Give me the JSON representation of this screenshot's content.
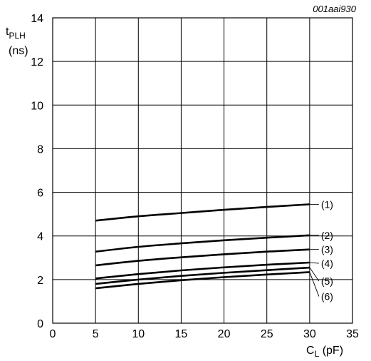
{
  "chart_data": {
    "type": "line",
    "code": "001aai930",
    "ylabel_main": "t",
    "ylabel_sub": "PLH",
    "yunit": "(ns)",
    "xlabel_main": "C",
    "xlabel_sub": "L",
    "xunit": " (pF)",
    "xlim": [
      0,
      35
    ],
    "ylim": [
      0,
      14
    ],
    "xticks": [
      0,
      5,
      10,
      15,
      20,
      25,
      30,
      35
    ],
    "yticks": [
      0,
      2,
      4,
      6,
      8,
      10,
      12,
      14
    ],
    "grid": true,
    "x": [
      5,
      10,
      15,
      20,
      25,
      30
    ],
    "series": [
      {
        "name": "(1)",
        "values": [
          4.7,
          4.9,
          5.05,
          5.2,
          5.33,
          5.45
        ]
      },
      {
        "name": "(2)",
        "values": [
          3.28,
          3.5,
          3.66,
          3.8,
          3.92,
          4.03
        ]
      },
      {
        "name": "(3)",
        "values": [
          2.65,
          2.86,
          3.02,
          3.16,
          3.28,
          3.38
        ]
      },
      {
        "name": "(4)",
        "values": [
          2.05,
          2.25,
          2.42,
          2.56,
          2.68,
          2.78
        ]
      },
      {
        "name": "(5)",
        "values": [
          1.8,
          2.0,
          2.17,
          2.31,
          2.43,
          2.55
        ]
      },
      {
        "name": "(6)",
        "values": [
          1.6,
          1.8,
          1.97,
          2.11,
          2.23,
          2.34
        ]
      }
    ]
  }
}
